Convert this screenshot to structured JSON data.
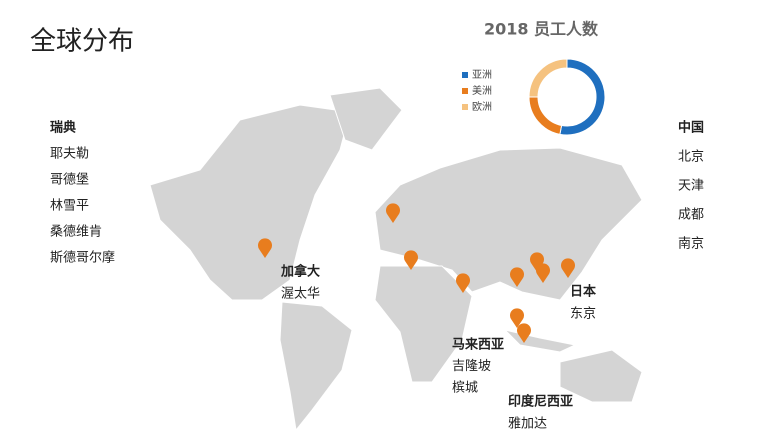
{
  "title": "全球分布",
  "chart_data": {
    "type": "pie",
    "title": "2018 员工人数",
    "categories": [
      "亚洲",
      "美洲",
      "欧洲"
    ],
    "values": [
      53,
      22,
      25
    ],
    "colors": [
      "#1f6fbf",
      "#e87d1e",
      "#f5c27f"
    ],
    "donut": true
  },
  "groups": [
    {
      "country": "瑞典",
      "cities": [
        "耶夫勒",
        "哥德堡",
        "林雪平",
        "桑德维肯",
        "斯德哥尔摩"
      ]
    },
    {
      "country": "中国",
      "cities": [
        "北京",
        "天津",
        "成都",
        "南京"
      ]
    },
    {
      "country": "加拿大",
      "cities": [
        "渥太华"
      ]
    },
    {
      "country": "日本",
      "cities": [
        "东京"
      ]
    },
    {
      "country": "马来西亚",
      "cities": [
        "吉隆坡",
        "槟城"
      ]
    },
    {
      "country": "印度尼西亚",
      "cities": [
        "雅加达"
      ]
    }
  ]
}
